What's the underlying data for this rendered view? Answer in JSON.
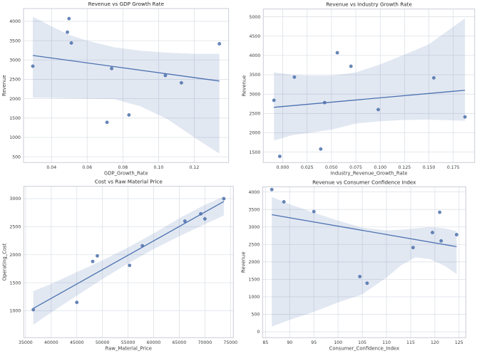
{
  "style": {
    "background": "#ffffff",
    "accent_color": "#4c72b0",
    "marker_color": "#4c72b0",
    "marker_edge_color": "#3a5a8f",
    "line_color": "#4c72b0",
    "band_color": "#4c72b0",
    "band_opacity": 0.16,
    "grid_color": "#dde1e8",
    "spine_color": "#c9cdd6",
    "title_color": "#262626",
    "label_color": "#3b3b3b",
    "tick_color": "#3b3b3b"
  },
  "chart_data": [
    {
      "type": "scatter",
      "title": "Revenue vs GDP Growth Rate",
      "xlabel": "GDP_Growth_Rate",
      "ylabel": "Revenue",
      "xlim": [
        0.0243,
        0.1393
      ],
      "ylim": [
        350,
        4330
      ],
      "grid": true,
      "legend_position": "none",
      "regression_line": true,
      "xticks": [
        0.04,
        0.06,
        0.08,
        0.1,
        0.12
      ],
      "xtick_labels": [
        "0.04",
        "0.06",
        "0.08",
        "0.10",
        "0.12"
      ],
      "yticks": [
        500,
        1000,
        1500,
        2000,
        2500,
        3000,
        3500,
        4000
      ],
      "ytick_labels": [
        "500",
        "1000",
        "1500",
        "2000",
        "2500",
        "3000",
        "3500",
        "4000"
      ],
      "points": [
        [
          0.0295,
          2840
        ],
        [
          0.0489,
          3720
        ],
        [
          0.0498,
          4070
        ],
        [
          0.0511,
          3440
        ],
        [
          0.0711,
          1390
        ],
        [
          0.0737,
          2780
        ],
        [
          0.0834,
          1580
        ],
        [
          0.1038,
          2600
        ],
        [
          0.1128,
          2410
        ],
        [
          0.1341,
          3420
        ]
      ],
      "ci_band": {
        "x": [
          0.0295,
          0.04,
          0.05,
          0.06,
          0.075,
          0.09,
          0.105,
          0.12,
          0.1341
        ],
        "upper": [
          4120,
          3870,
          3650,
          3500,
          3330,
          3240,
          3190,
          3160,
          3160
        ],
        "lower": [
          2030,
          2020,
          2010,
          2000,
          1990,
          1800,
          1470,
          1000,
          580
        ]
      }
    },
    {
      "type": "scatter",
      "title": "Revenue vs Industry Growth Rate",
      "xlabel": "Industry_Revenue_Growth_Rate",
      "ylabel": "Revenue",
      "xlim": [
        -0.0199,
        0.1969
      ],
      "ylim": [
        1230,
        5200
      ],
      "grid": true,
      "legend_position": "none",
      "regression_line": true,
      "xticks": [
        0.0,
        0.025,
        0.05,
        0.075,
        0.1,
        0.125,
        0.15,
        0.175
      ],
      "xtick_labels": [
        "0.000",
        "0.025",
        "0.050",
        "0.075",
        "0.100",
        "0.125",
        "0.150",
        "0.175"
      ],
      "yticks": [
        1500,
        2000,
        2500,
        3000,
        3500,
        4000,
        4500,
        5000
      ],
      "ytick_labels": [
        "1500",
        "2000",
        "2500",
        "3000",
        "3500",
        "4000",
        "4500",
        "5000"
      ],
      "points": [
        [
          -0.009,
          2840
        ],
        [
          -0.003,
          1390
        ],
        [
          0.012,
          3440
        ],
        [
          0.039,
          1580
        ],
        [
          0.043,
          2780
        ],
        [
          0.056,
          4070
        ],
        [
          0.07,
          3720
        ],
        [
          0.098,
          2600
        ],
        [
          0.155,
          3420
        ],
        [
          0.187,
          2410
        ]
      ],
      "ci_band": {
        "x": [
          -0.009,
          0.01,
          0.025,
          0.05,
          0.075,
          0.1,
          0.125,
          0.15,
          0.187
        ],
        "upper": [
          3560,
          3500,
          3480,
          3480,
          3560,
          3770,
          4020,
          4290,
          4960
        ],
        "lower": [
          1800,
          1940,
          1990,
          2080,
          2240,
          2300,
          2330,
          2340,
          2310
        ]
      }
    },
    {
      "type": "scatter",
      "title": "Cost vs Raw Material Price",
      "xlabel": "Raw_Material_Price",
      "ylabel": "Operating_Cost",
      "xlim": [
        34640,
        75560
      ],
      "ylim": [
        520,
        3220
      ],
      "grid": true,
      "legend_position": "none",
      "regression_line": true,
      "xticks": [
        35000,
        40000,
        45000,
        50000,
        55000,
        60000,
        65000,
        70000,
        75000
      ],
      "xtick_labels": [
        "35000",
        "40000",
        "45000",
        "50000",
        "55000",
        "60000",
        "65000",
        "70000",
        "75000"
      ],
      "yticks": [
        1000,
        1500,
        2000,
        2500,
        3000
      ],
      "ytick_labels": [
        "1000",
        "1500",
        "2000",
        "2500",
        "3000"
      ],
      "points": [
        [
          36500,
          1020
        ],
        [
          45000,
          1150
        ],
        [
          48100,
          1880
        ],
        [
          49000,
          1980
        ],
        [
          55300,
          1810
        ],
        [
          57800,
          2160
        ],
        [
          66100,
          2600
        ],
        [
          69200,
          2730
        ],
        [
          70000,
          2640
        ],
        [
          73700,
          3000
        ]
      ],
      "ci_band": {
        "x": [
          36500,
          40000,
          45000,
          50000,
          55000,
          60000,
          65000,
          70000,
          73700
        ],
        "upper": [
          1350,
          1480,
          1690,
          1900,
          2130,
          2380,
          2650,
          2890,
          3040
        ],
        "lower": [
          750,
          970,
          1270,
          1565,
          1845,
          2100,
          2330,
          2545,
          2700
        ]
      }
    },
    {
      "type": "scatter",
      "title": "Revenue vs Consumer Confidence Index",
      "xlabel": "Consumer_Confidence_Index",
      "ylabel": "Revenue",
      "xlim": [
        84.4,
        126.4
      ],
      "ylim": [
        -170,
        4150
      ],
      "grid": true,
      "legend_position": "none",
      "regression_line": true,
      "xticks": [
        85,
        90,
        95,
        100,
        105,
        110,
        115,
        120,
        125
      ],
      "xtick_labels": [
        "85",
        "90",
        "95",
        "100",
        "105",
        "110",
        "115",
        "120",
        "125"
      ],
      "yticks": [
        0,
        500,
        1000,
        1500,
        2000,
        2500,
        3000,
        3500,
        4000
      ],
      "ytick_labels": [
        "0",
        "500",
        "1000",
        "1500",
        "2000",
        "2500",
        "3000",
        "3500",
        "4000"
      ],
      "points": [
        [
          86.3,
          4070
        ],
        [
          88.8,
          3720
        ],
        [
          95.0,
          3440
        ],
        [
          104.5,
          1580
        ],
        [
          106.0,
          1390
        ],
        [
          115.5,
          2410
        ],
        [
          119.5,
          2840
        ],
        [
          121.0,
          3420
        ],
        [
          121.3,
          2600
        ],
        [
          124.5,
          2780
        ]
      ],
      "ci_band": {
        "x": [
          86.3,
          90,
          95,
          100,
          105,
          110,
          113,
          116,
          119,
          122,
          124.5
        ],
        "upper": [
          3860,
          3650,
          3410,
          3180,
          2980,
          2900,
          2920,
          2960,
          3000,
          2960,
          2880
        ],
        "lower": [
          150,
          340,
          570,
          840,
          1070,
          1550,
          1900,
          2130,
          2080,
          1890,
          1650
        ]
      }
    }
  ]
}
